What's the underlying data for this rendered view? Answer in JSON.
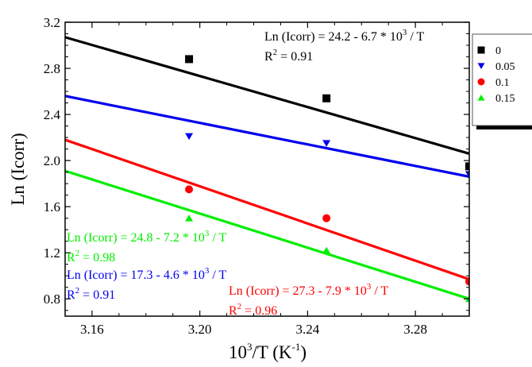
{
  "chart_data": {
    "type": "scatter",
    "title": "",
    "xlabel": {
      "base": "10",
      "sup": "3",
      "rest": "/T (K",
      "sup2": "-1",
      "close": ")"
    },
    "ylabel": "Ln (Icorr)",
    "xlim": [
      3.15,
      3.3
    ],
    "ylim": [
      0.65,
      3.2
    ],
    "xticks": [
      "3.16",
      "3.20",
      "3.24",
      "3.28"
    ],
    "xtick_values": [
      3.16,
      3.2,
      3.24,
      3.28
    ],
    "yticks": [
      "0.8",
      "1.2",
      "1.6",
      "2.0",
      "2.4",
      "2.8",
      "3.2"
    ],
    "ytick_values": [
      0.8,
      1.2,
      1.6,
      2.0,
      2.4,
      2.8,
      3.2
    ],
    "grid": false,
    "legend_position": "top-right",
    "series": [
      {
        "name": "0",
        "color": "#000000",
        "marker": "square",
        "x": [
          3.196,
          3.247,
          3.3
        ],
        "y": [
          2.88,
          2.54,
          1.95
        ],
        "fit_line": [
          [
            3.15,
            3.07
          ],
          [
            3.3,
            2.06
          ]
        ],
        "annotation": {
          "main": "Ln (Icorr) = 24.2 - 6.7 * 10",
          "sup": "3",
          "tail": " / T",
          "r2_prefix": "R",
          "r2_sup": "2",
          "r2_value": " = 0.91"
        }
      },
      {
        "name": "0.05",
        "color": "#0000ee",
        "marker": "triangle-down",
        "x": [
          3.196,
          3.247,
          3.3
        ],
        "y": [
          2.21,
          2.15,
          1.88
        ],
        "fit_line": [
          [
            3.15,
            2.56
          ],
          [
            3.3,
            1.86
          ]
        ],
        "annotation": {
          "main": "Ln (Icorr) = 17.3 - 4.6 * 10",
          "sup": "3",
          "tail": " / T",
          "r2_prefix": "R",
          "r2_sup": "2",
          "r2_value": " = 0.91"
        }
      },
      {
        "name": "0.1",
        "color": "#ff0000",
        "marker": "circle",
        "x": [
          3.196,
          3.247,
          3.3
        ],
        "y": [
          1.75,
          1.5,
          0.95
        ],
        "fit_line": [
          [
            3.15,
            2.18
          ],
          [
            3.3,
            0.97
          ]
        ],
        "annotation": {
          "main": "Ln (Icorr) = 27.3 - 7.9 * 10",
          "sup": "3",
          "tail": " / T",
          "r2_prefix": "R",
          "r2_sup": "2",
          "r2_value": " = 0.96"
        }
      },
      {
        "name": "0.15",
        "color": "#00ee00",
        "marker": "triangle-up",
        "x": [
          3.196,
          3.247,
          3.3
        ],
        "y": [
          1.5,
          1.22,
          0.8
        ],
        "fit_line": [
          [
            3.15,
            1.91
          ],
          [
            3.3,
            0.8
          ]
        ],
        "annotation": {
          "main": "Ln (Icorr) = 24.8 - 7.2 * 10",
          "sup": "3",
          "tail": " / T",
          "r2_prefix": "R",
          "r2_sup": "2",
          "r2_value": " = 0.98"
        }
      }
    ]
  }
}
